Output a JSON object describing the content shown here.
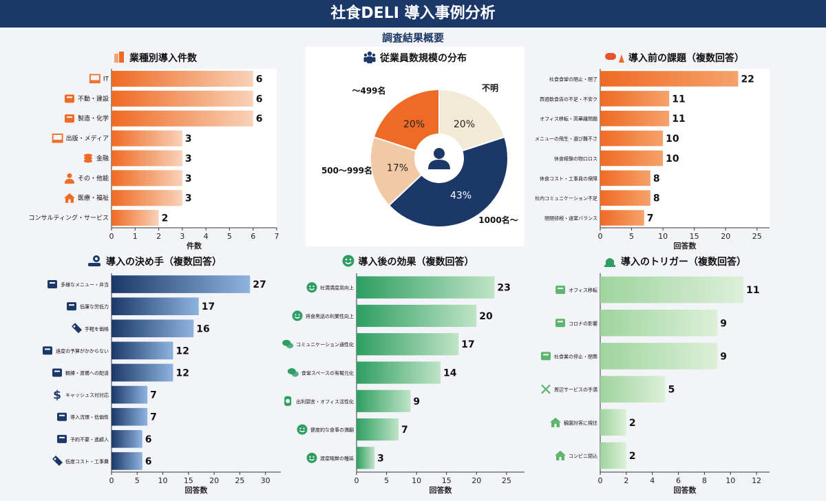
{
  "title": "社食DELI 導入事例分析",
  "subtitle": "調査結果概要",
  "colors": {
    "orange": "#ef6a24",
    "orange_light": "#f8c9a8",
    "navy": "#1b3868",
    "navy_light": "#8fb3e0",
    "green": "#2e9e62",
    "green_light": "#bfe4c4",
    "lightgreen": "#9fd49e",
    "lightgreen_pale": "#dcf0d8",
    "cream": "#f3ead6",
    "peach": "#f1c9a5"
  },
  "chart_data": [
    {
      "id": "industry",
      "type": "bar",
      "orientation": "horizontal",
      "title": "業種別導入件数",
      "title_icon": "building-icon",
      "xlabel": "件数",
      "xlim": [
        0,
        7
      ],
      "xticks": [
        0,
        1,
        2,
        3,
        4,
        5,
        6,
        7
      ],
      "categories": [
        "IT",
        "不動・建設",
        "製造・化学",
        "出版・メディア",
        "金融",
        "その・他能",
        "医療・福祉",
        "コンサルティング・サービス"
      ],
      "icons": [
        "laptop-icon",
        "crane-icon",
        "factory-icon",
        "monitor-icon",
        "coins-icon",
        "person-icon",
        "house-icon",
        ""
      ],
      "values": [
        6,
        6,
        6,
        3,
        3,
        3,
        3,
        2
      ]
    },
    {
      "id": "company_size",
      "type": "pie",
      "title": "従業員数規模の分布",
      "title_icon": "people-icon",
      "center_icon": "user-icon",
      "slices": [
        {
          "label": "不明",
          "value": 20,
          "pct_label": "20%",
          "color": "#f3ead6"
        },
        {
          "label": "1000名〜",
          "value": 43,
          "pct_label": "43%",
          "color": "#1b3868"
        },
        {
          "label": "500〜999名",
          "value": 17,
          "pct_label": "17%",
          "color": "#f1c9a5"
        },
        {
          "label": "〜499名",
          "value": 20,
          "pct_label": "20%",
          "color": "#ef6a24"
        }
      ]
    },
    {
      "id": "issues",
      "type": "bar",
      "orientation": "horizontal",
      "title": "導入前の課題（複数回答）",
      "title_icon": "warning-icon",
      "xlabel": "回答数",
      "xlim": [
        0,
        27
      ],
      "xticks": [
        0,
        5,
        10,
        15,
        20,
        25
      ],
      "categories": [
        "社食食堂の閉止・閉了",
        "西週飲食店の不足・不安ク",
        "オフィス移転・高華離問題",
        "メニューの飛生・選び難不さ",
        "休食経験の物口ロス",
        "休食コスト・工事員の保障",
        "社内コミュニケーション不足",
        "閉閉径税・遠室バランス"
      ],
      "values": [
        22,
        11,
        11,
        10,
        10,
        8,
        8,
        7
      ]
    },
    {
      "id": "decision",
      "type": "bar",
      "orientation": "horizontal",
      "title": "導入の決め手（複数回答）",
      "title_icon": "hand-gear-icon",
      "xlabel": "回答数",
      "xlim": [
        0,
        33
      ],
      "xticks": [
        0,
        5,
        10,
        15,
        20,
        25,
        30
      ],
      "categories": [
        "多様なメニュー・弁当",
        "低廉な労低力",
        "手軽を価格",
        "遠度の予算がかからない",
        "観練・渡備への配清",
        "キャッシュス対対応",
        "導入流環・低価性",
        "予約不要・進顧入",
        "低度コスト・工事費"
      ],
      "icons": [
        "menu-icon",
        "handshake-icon",
        "price-tag-icon",
        "scale-icon",
        "briefcase-icon",
        "dollar-icon",
        "hand-coin-icon",
        "ruler-icon",
        "tag-icon"
      ],
      "values": [
        27,
        17,
        16,
        12,
        12,
        7,
        7,
        6,
        6
      ]
    },
    {
      "id": "effects",
      "type": "bar",
      "orientation": "horizontal",
      "title": "導入後の効果（複数回答）",
      "title_icon": "smile-icon",
      "xlabel": "回答数",
      "xlim": [
        0,
        28
      ],
      "xticks": [
        0,
        5,
        10,
        15,
        20,
        25
      ],
      "categories": [
        "社満満度高向上",
        "将食黒話の利業性向上",
        "コミュニケーション通性化",
        "食堂スペースの有報元化",
        "出利頭言・オフィス活性化",
        "健度的な食事の満翻",
        "渡度睛鮮の種延"
      ],
      "icons": [
        "smile-icon",
        "smile-icon",
        "chat-icon",
        "chat-icon",
        "clock-icon",
        "smile-icon",
        "smile-icon"
      ],
      "values": [
        23,
        20,
        17,
        14,
        9,
        7,
        3
      ]
    },
    {
      "id": "triggers",
      "type": "bar",
      "orientation": "horizontal",
      "title": "導入のトリガー（複数回答）",
      "title_icon": "alarm-icon",
      "xlabel": "回答数",
      "xlim": [
        0,
        13
      ],
      "xticks": [
        0,
        2,
        4,
        6,
        8,
        10,
        12
      ],
      "categories": [
        "オフィス移転",
        "コロナの影響",
        "社食業の停止・閉箇",
        "周辺サービスの手満",
        "観園対客に規往",
        "コンビニ閉込"
      ],
      "icons": [
        "office-icon",
        "mask-icon",
        "barrier-icon",
        "fork-knife-icon",
        "store-icon",
        "shop-icon"
      ],
      "values": [
        11,
        9,
        9,
        5,
        2,
        2
      ]
    }
  ]
}
